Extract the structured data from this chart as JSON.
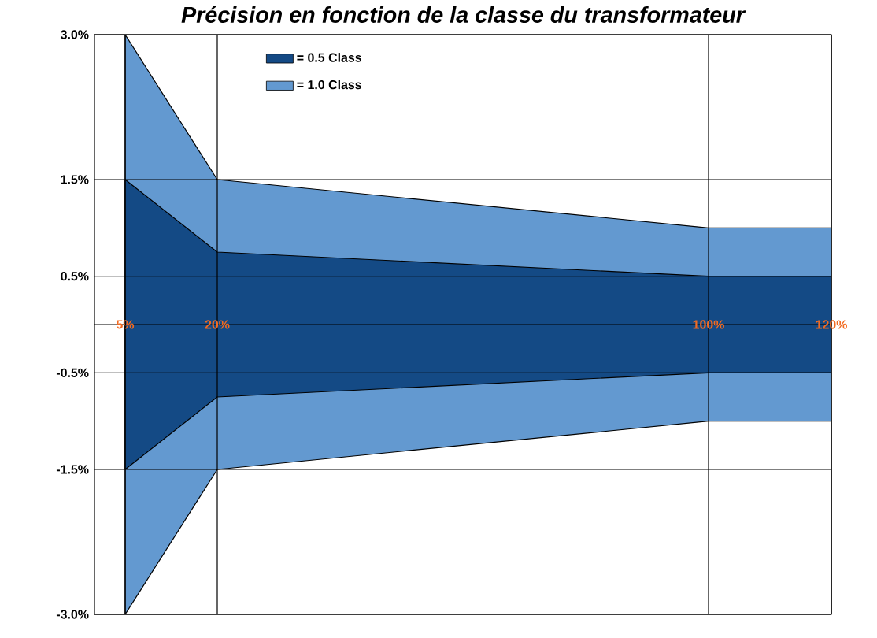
{
  "chart_data": {
    "type": "area",
    "title": "Précision en fonction de la classe du transformateur",
    "x": [
      5,
      20,
      100,
      120
    ],
    "series": [
      {
        "name": "= 1.0 Class",
        "color": "#6399d0",
        "values": [
          3.0,
          1.5,
          1.0,
          1.0
        ]
      },
      {
        "color": "#6399d0",
        "values": [
          -3.0,
          -1.5,
          -1.0,
          -1.0
        ]
      },
      {
        "name": "= 0.5 Class",
        "color": "#144a85",
        "values": [
          1.5,
          0.75,
          0.5,
          0.5
        ]
      },
      {
        "color": "#144a85",
        "values": [
          -1.5,
          -0.75,
          -0.5,
          -0.5
        ]
      }
    ],
    "xlim": [
      0,
      120
    ],
    "ylim": [
      -3,
      3
    ],
    "xticks": [
      {
        "value": 5,
        "label": "5%"
      },
      {
        "value": 20,
        "label": "20%"
      },
      {
        "value": 100,
        "label": "100%"
      },
      {
        "value": 120,
        "label": "120%"
      }
    ],
    "yticks": [
      {
        "value": -3,
        "label": "-3.0%"
      },
      {
        "value": -1.5,
        "label": "-1.5%"
      },
      {
        "value": -0.5,
        "label": "-0.5%"
      },
      {
        "value": 0.5,
        "label": "0.5%"
      },
      {
        "value": 1.5,
        "label": "1.5%"
      },
      {
        "value": 3,
        "label": "3.0%"
      }
    ],
    "ref_lines": [
      {
        "axis": "y",
        "value": 0
      }
    ],
    "grid": true,
    "legend": "top"
  }
}
